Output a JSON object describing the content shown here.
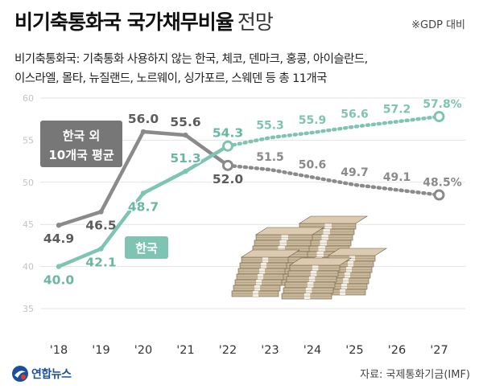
{
  "title": {
    "main": "비기축통화국 국가채무비율",
    "sub": "전망",
    "unit_note": "※GDP 대비"
  },
  "description": [
    "비기축통화국: 기축통화 사용하지 않는 한국, 체코, 덴마크, 홍콩, 아이슬란드,",
    "이스라엘, 몰타, 뉴질랜드, 노르웨이, 싱가포르, 스웨덴 등 총 11개국"
  ],
  "source": "자료: 국제통화기금(IMF)",
  "logo": {
    "text": "연합뉴스"
  },
  "colors": {
    "korea": "#7fc4b3",
    "korea_label": "#6ab7a3",
    "avg": "#8a8a8a",
    "avg_label": "#5c5c5c",
    "grid": "#e3e3e3",
    "tick": "#c3c3c3",
    "money_paper": "#c9b79a",
    "money_dark": "#6a5c44",
    "money_band": "#f3eee3"
  },
  "chart_data": {
    "type": "line",
    "title": "비기축통화국 국가채무비율 전망",
    "xlabel": "",
    "ylabel": "GDP 대비 (%)",
    "categories": [
      "'18",
      "'19",
      "'20",
      "'21",
      "'22",
      "'23",
      "'24",
      "'25",
      "'26",
      "'27"
    ],
    "ylim": [
      35,
      60
    ],
    "yticks": [
      35,
      40,
      45,
      50,
      55,
      60
    ],
    "grid": true,
    "series": [
      {
        "name": "한국",
        "legend_label": "한국",
        "values": [
          40.0,
          42.1,
          48.7,
          51.3,
          54.3,
          55.3,
          55.9,
          56.6,
          57.2,
          57.8
        ],
        "labels": [
          "40.0",
          "42.1",
          "48.7",
          "51.3",
          "54.3",
          "55.3",
          "55.9",
          "56.6",
          "57.2",
          "57.8%"
        ],
        "actual_through": "'22"
      },
      {
        "name": "한국 외 10개국 평균",
        "legend_label": [
          "한국 외",
          "10개국 평균"
        ],
        "values": [
          44.9,
          46.5,
          56.0,
          55.6,
          52.0,
          51.5,
          50.6,
          49.7,
          49.1,
          48.5
        ],
        "labels": [
          "44.9",
          "46.5",
          "56.0",
          "55.6",
          "52.0",
          "51.5",
          "50.6",
          "49.7",
          "49.1",
          "48.5%"
        ],
        "actual_through": "'22"
      }
    ]
  }
}
